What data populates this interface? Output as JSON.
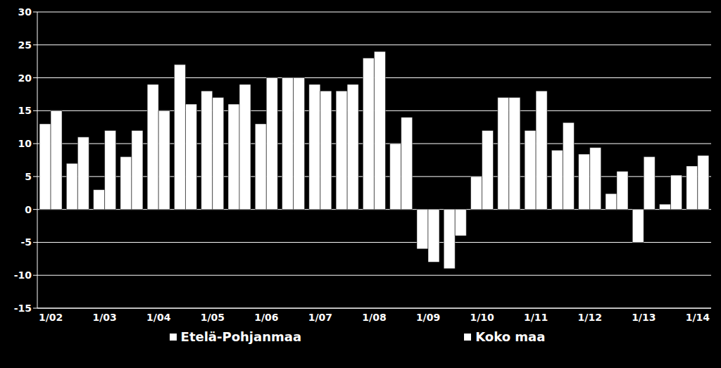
{
  "chart_data": {
    "type": "bar",
    "categories": [
      "1/02",
      null,
      "1/03",
      null,
      "1/04",
      null,
      "1/05",
      null,
      "1/06",
      null,
      "1/07",
      null,
      "1/08",
      null,
      "1/09",
      null,
      "1/10",
      null,
      "1/11",
      null,
      "1/12",
      null,
      "1/13",
      null,
      "1/14"
    ],
    "series": [
      {
        "name": "Etelä-Pohjanmaa",
        "color": "#ffffff",
        "values": [
          13,
          7,
          3,
          8,
          19,
          22,
          18,
          16,
          13,
          20,
          19,
          18,
          23,
          10,
          -6,
          -9,
          5,
          17,
          12,
          9,
          8.4,
          2.4,
          -5,
          0.8,
          6.6
        ]
      },
      {
        "name": "Koko maa",
        "color": "#ffffff",
        "values": [
          15,
          11,
          12,
          12,
          15,
          16,
          17,
          19,
          20,
          20,
          18,
          19,
          24,
          14,
          -8,
          -4,
          12,
          17,
          18,
          13.2,
          9.4,
          5.8,
          8,
          5.2,
          8.2
        ]
      }
    ],
    "ylim": [
      -15,
      30
    ],
    "yticks": [
      -15,
      -10,
      -5,
      0,
      5,
      10,
      15,
      20,
      25,
      30
    ],
    "grid": true,
    "legend": "bottom"
  }
}
